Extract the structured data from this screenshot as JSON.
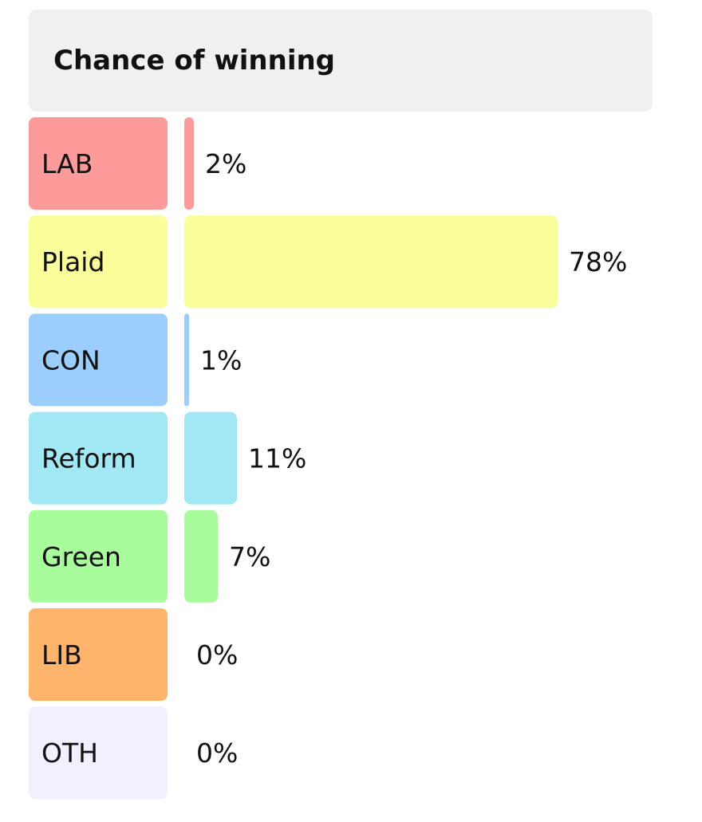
{
  "chart_data": {
    "type": "bar",
    "orientation": "horizontal",
    "title": "Chance of winning",
    "categories": [
      "LAB",
      "Plaid",
      "CON",
      "Reform",
      "Green",
      "LIB",
      "OTH"
    ],
    "values": [
      2,
      78,
      1,
      11,
      7,
      0,
      0
    ],
    "value_labels": [
      "2%",
      "78%",
      "1%",
      "11%",
      "7%",
      "0%",
      "0%"
    ],
    "unit": "%",
    "xlim": [
      0,
      78
    ],
    "colors": [
      "#fd9b9b",
      "#f9fe9b",
      "#9bcdfd",
      "#a1e8f4",
      "#a9fc9c",
      "#ffb46b",
      "#f2efff"
    ],
    "grid": false,
    "legend": "none"
  }
}
